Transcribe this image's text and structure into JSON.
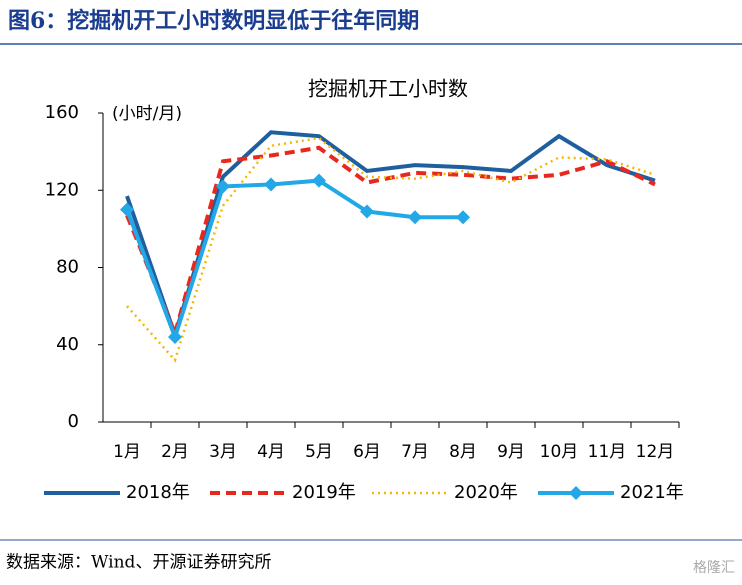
{
  "header": {
    "title": "图6：挖掘机开工小时数明显低于往年同期"
  },
  "chart_data": {
    "type": "line",
    "title": "挖掘机开工小时数",
    "y_label": "(小时/月)",
    "categories": [
      "1月",
      "2月",
      "3月",
      "4月",
      "5月",
      "6月",
      "7月",
      "8月",
      "9月",
      "10月",
      "11月",
      "12月"
    ],
    "series": [
      {
        "name": "2018年",
        "color": "#1f5fa0",
        "style": "solid",
        "values": [
          117,
          45,
          127,
          150,
          148,
          130,
          133,
          132,
          130,
          148,
          133,
          125
        ]
      },
      {
        "name": "2019年",
        "color": "#e8281e",
        "style": "dashed",
        "values": [
          107,
          46,
          135,
          138,
          142,
          124,
          129,
          128,
          126,
          128,
          135,
          123
        ]
      },
      {
        "name": "2020年",
        "color": "#f5b800",
        "style": "dotted",
        "values": [
          60,
          32,
          112,
          143,
          147,
          127,
          126,
          130,
          124,
          137,
          136,
          128
        ]
      },
      {
        "name": "2021年",
        "color": "#22a8e6",
        "style": "solid",
        "marker": "diamond",
        "values": [
          110,
          44,
          122,
          123,
          125,
          109,
          106,
          106,
          null,
          null,
          null,
          null
        ]
      }
    ],
    "ylim": [
      0,
      160
    ],
    "yticks": [
      0,
      40,
      80,
      120,
      160
    ],
    "legend": "bottom"
  },
  "footer": {
    "source": "数据来源：Wind、开源证券研究所",
    "watermark": "格隆汇"
  }
}
